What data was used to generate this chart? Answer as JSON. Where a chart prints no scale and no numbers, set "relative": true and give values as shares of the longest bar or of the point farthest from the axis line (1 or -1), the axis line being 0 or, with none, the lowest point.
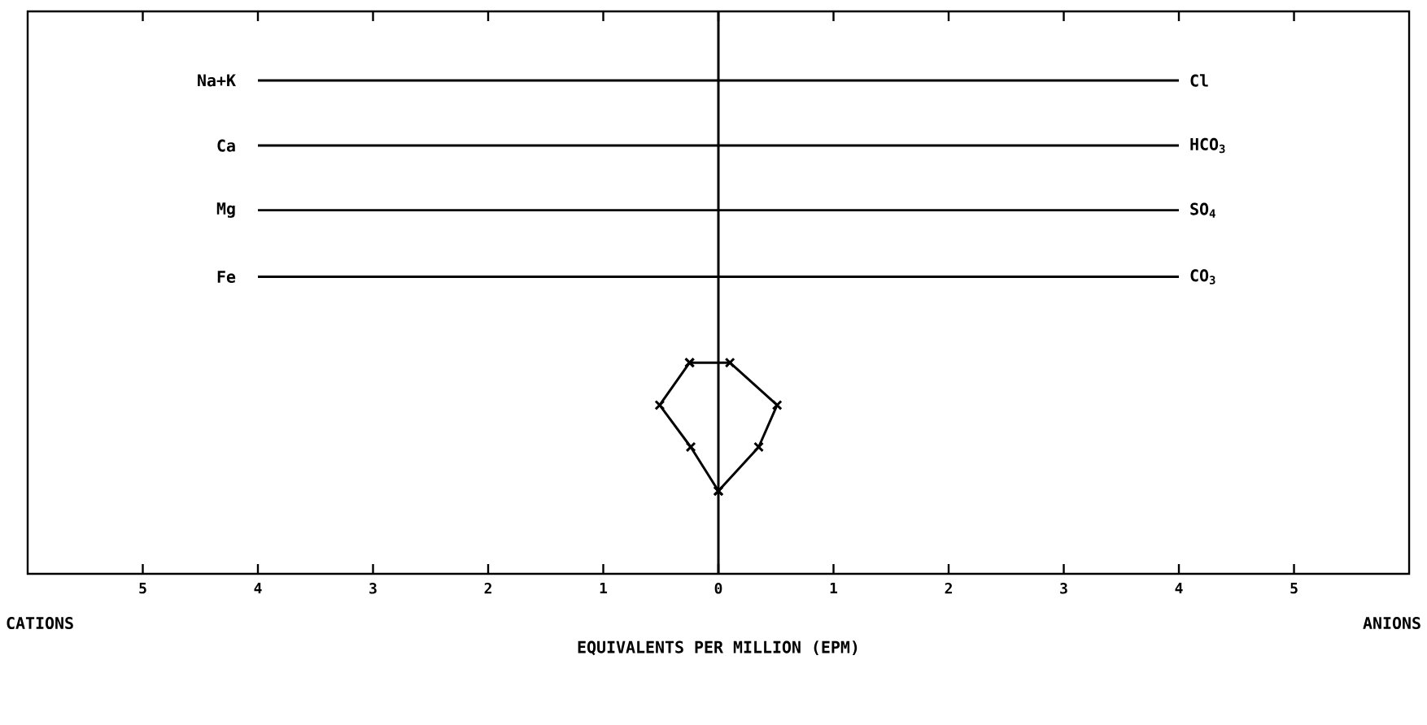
{
  "chart_data": {
    "type": "line",
    "relative": true,
    "xlabel": "EQUIVALENTS PER MILLION (EPM)",
    "xlim": [
      -6,
      6
    ],
    "xticks": [
      {
        "value": -5,
        "label": "5"
      },
      {
        "value": -4,
        "label": "4"
      },
      {
        "value": -3,
        "label": "3"
      },
      {
        "value": -2,
        "label": "2"
      },
      {
        "value": -1,
        "label": "1"
      },
      {
        "value": 0,
        "label": "0"
      },
      {
        "value": 1,
        "label": "1"
      },
      {
        "value": 2,
        "label": "2"
      },
      {
        "value": 3,
        "label": "3"
      },
      {
        "value": 4,
        "label": "4"
      },
      {
        "value": 5,
        "label": "5"
      }
    ],
    "series": [
      {
        "name": "Na+K",
        "color": "#000000",
        "marker": "none",
        "x": [
          -4,
          4
        ],
        "values": [
          1.0,
          1.0
        ]
      },
      {
        "name": "Ca",
        "color": "#000000",
        "marker": "none",
        "x": [
          -4,
          4
        ],
        "values": [
          0.868,
          0.868
        ]
      },
      {
        "name": "Mg",
        "color": "#000000",
        "marker": "none",
        "x": [
          -4,
          4
        ],
        "values": [
          0.737,
          0.737
        ]
      },
      {
        "name": "Fe",
        "color": "#000000",
        "marker": "none",
        "x": [
          -4,
          4
        ],
        "values": [
          0.602,
          0.602
        ]
      },
      {
        "color": "#000000",
        "marker": "cross",
        "x": [
          -0.25,
          -0.51,
          -0.24,
          0
        ],
        "values": [
          0.428,
          0.342,
          0.257,
          0.168
        ]
      },
      {
        "color": "#000000",
        "marker": "cross",
        "x": [
          -0.25,
          0.1,
          0.51,
          0.35,
          0
        ],
        "values": [
          0.428,
          0.428,
          0.342,
          0.257,
          0.168
        ]
      }
    ],
    "ref_lines": [
      {
        "axis": "x",
        "value": 0,
        "color": "#000000"
      }
    ],
    "line_style": "solid",
    "annotations": [
      "Cl",
      "HCO$_{3}$",
      "SO$_{4}$",
      "CO$_{3}$",
      "CATIONS",
      "ANIONS"
    ]
  }
}
